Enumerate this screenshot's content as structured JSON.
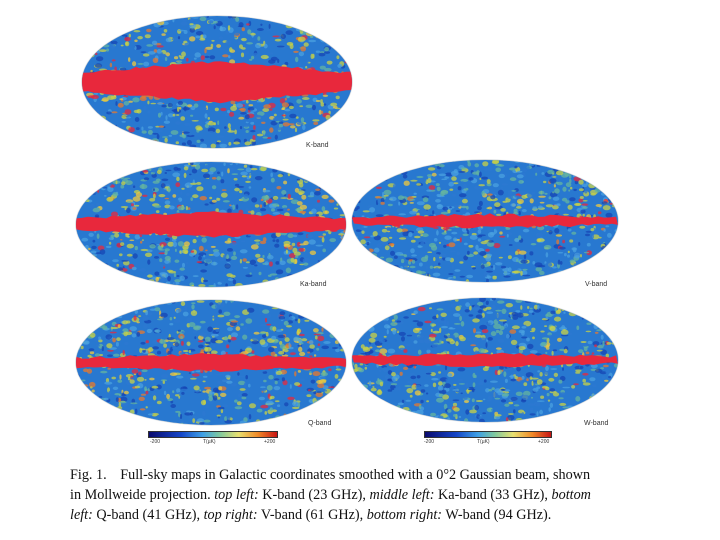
{
  "maps": [
    {
      "id": "k-band",
      "label": "K-band",
      "dust": 0.75,
      "band": 38
    },
    {
      "id": "ka-band",
      "label": "Ka-band",
      "dust": 0.55,
      "band": 22
    },
    {
      "id": "v-band-top",
      "label": "V-band",
      "dust": 0.25,
      "band": 10
    },
    {
      "id": "q-band",
      "label": "Q-band",
      "dust": 0.45,
      "band": 14
    },
    {
      "id": "w-band",
      "label": "W-band",
      "dust": 0.25,
      "band": 10
    }
  ],
  "colorbars": [
    {
      "min": "-200",
      "unit": "T(µK)",
      "max": "+200"
    },
    {
      "min": "-200",
      "unit": "T(µK)",
      "max": "+200"
    }
  ],
  "colors": {
    "sky_blue": "#2878d0",
    "galactic_red": "#e8283c",
    "noise_palette": [
      "#1646b4",
      "#2c78d2",
      "#4aa0e0",
      "#64b4a0",
      "#c8d246",
      "#f0c83c",
      "#e8782c",
      "#e8283c"
    ]
  },
  "caption": {
    "fig": "Fig. 1.",
    "text1": "Full-sky maps in Galactic coordinates smoothed with a 0°2 Gaussian beam, shown",
    "text2a": "in Mollweide projection.",
    "tl_label": "top left:",
    "tl_text": "K-band (23 GHz),",
    "ml_label": "middle left:",
    "ml_text": "Ka-band (33 GHz),",
    "bottom_word": "bottom",
    "left_word": "left:",
    "bl_text": "Q-band (41 GHz),",
    "tr_label": "top right:",
    "tr_text": "V-band (61 GHz),",
    "br_label": "bottom right:",
    "br_text": "W-band (94 GHz)."
  }
}
